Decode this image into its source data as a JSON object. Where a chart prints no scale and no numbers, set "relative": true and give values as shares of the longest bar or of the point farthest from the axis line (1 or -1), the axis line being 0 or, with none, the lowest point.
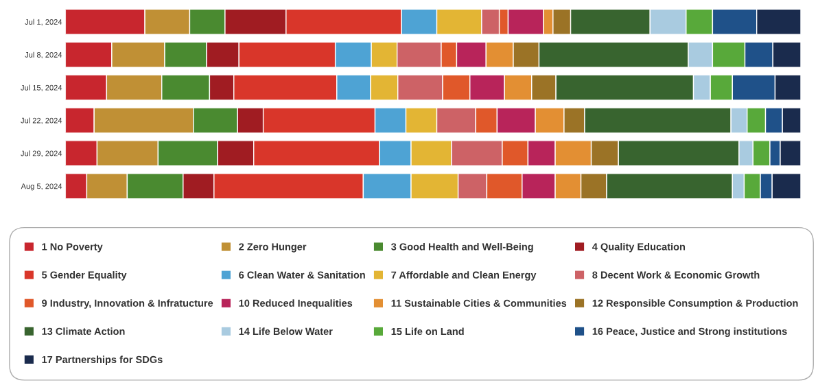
{
  "chart_data": {
    "type": "bar",
    "orientation": "horizontal",
    "stacked": true,
    "relative": true,
    "legend": "bottom",
    "categories": [
      "Jul 1, 2024",
      "Jul 8, 2024",
      "Jul 15, 2024",
      "Jul 22, 2024",
      "Jul 29, 2024",
      "Aug 5, 2024"
    ],
    "series": [
      {
        "name": "1 No Poverty",
        "color": "#c8262e",
        "values": [
          0.108,
          0.063,
          0.056,
          0.039,
          0.043,
          0.029
        ]
      },
      {
        "name": "2 Zero Hunger",
        "color": "#c09035",
        "values": [
          0.061,
          0.072,
          0.075,
          0.135,
          0.083,
          0.055
        ]
      },
      {
        "name": "3 Good Health and Well-Being",
        "color": "#4a8a30",
        "values": [
          0.048,
          0.057,
          0.065,
          0.06,
          0.081,
          0.076
        ]
      },
      {
        "name": "4 Quality Education",
        "color": "#a01c22",
        "values": [
          0.083,
          0.044,
          0.033,
          0.035,
          0.049,
          0.042
        ]
      },
      {
        "name": "5 Gender Equality",
        "color": "#d9362a",
        "values": [
          0.157,
          0.131,
          0.14,
          0.152,
          0.171,
          0.203
        ]
      },
      {
        "name": "6 Clean Water & Sanitation",
        "color": "#4ea3d4",
        "values": [
          0.048,
          0.049,
          0.046,
          0.042,
          0.043,
          0.065
        ]
      },
      {
        "name": "7 Affordable and Clean Energy",
        "color": "#e3b534",
        "values": [
          0.061,
          0.035,
          0.037,
          0.042,
          0.055,
          0.064
        ]
      },
      {
        "name": "8 Decent Work & Economic Growth",
        "color": "#cd6266",
        "values": [
          0.024,
          0.06,
          0.061,
          0.053,
          0.069,
          0.039
        ]
      },
      {
        "name": "9 Industry, Innovation & Infratucture",
        "color": "#e0582a",
        "values": [
          0.012,
          0.021,
          0.037,
          0.029,
          0.035,
          0.048
        ]
      },
      {
        "name": "10 Reduced Inequalities",
        "color": "#b8245a",
        "values": [
          0.048,
          0.04,
          0.047,
          0.052,
          0.037,
          0.045
        ]
      },
      {
        "name": "11 Sustainable Cities & Communities",
        "color": "#e38f33",
        "values": [
          0.013,
          0.037,
          0.037,
          0.039,
          0.049,
          0.035
        ]
      },
      {
        "name": "12 Responsible Consumption & Production",
        "color": "#9b7326",
        "values": [
          0.024,
          0.035,
          0.033,
          0.028,
          0.037,
          0.035
        ]
      },
      {
        "name": "13 Climate Action",
        "color": "#38642f",
        "values": [
          0.108,
          0.203,
          0.187,
          0.199,
          0.164,
          0.171
        ]
      },
      {
        "name": "14 Life Below Water",
        "color": "#a9cbe0",
        "values": [
          0.049,
          0.033,
          0.023,
          0.022,
          0.019,
          0.016
        ]
      },
      {
        "name": "15 Life on Land",
        "color": "#58a93a",
        "values": [
          0.036,
          0.044,
          0.03,
          0.025,
          0.023,
          0.022
        ]
      },
      {
        "name": "16 Peace, Justice and Strong institutions",
        "color": "#1f5189",
        "values": [
          0.06,
          0.038,
          0.058,
          0.023,
          0.014,
          0.016
        ]
      },
      {
        "name": "17 Partnerships for SDGs",
        "color": "#1a2b4d",
        "values": [
          0.06,
          0.038,
          0.035,
          0.025,
          0.028,
          0.039
        ]
      }
    ]
  }
}
